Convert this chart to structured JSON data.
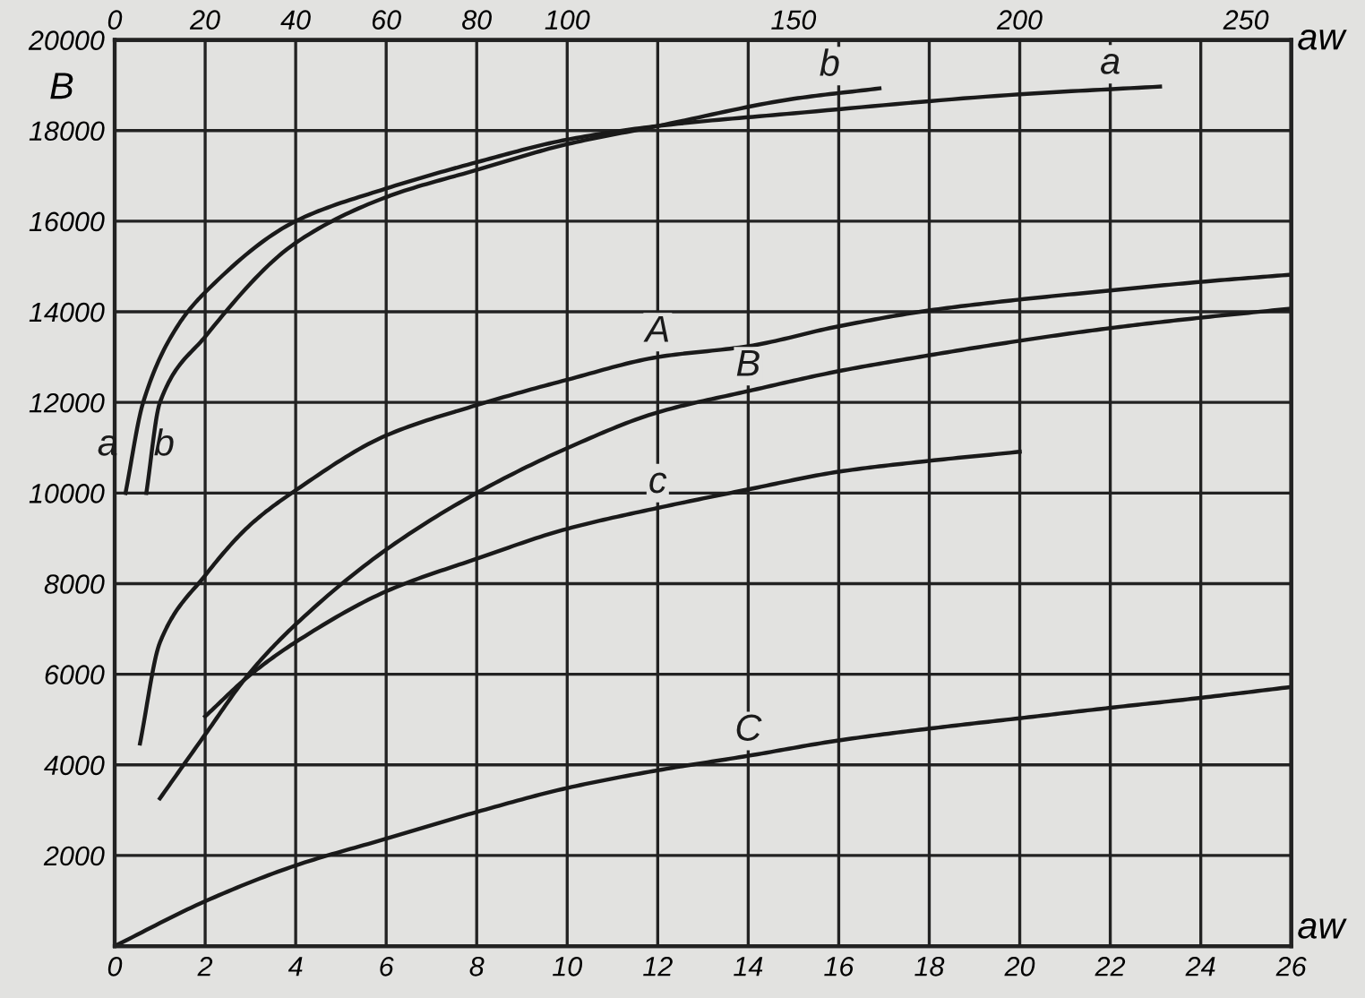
{
  "chart_data": {
    "type": "line",
    "xlabel": "aw",
    "x2label": "aw",
    "ylabel": "B",
    "xlim": [
      0,
      26
    ],
    "xticks": [
      0,
      2,
      4,
      6,
      8,
      10,
      12,
      14,
      16,
      18,
      20,
      22,
      24,
      26
    ],
    "x2lim": [
      0,
      260
    ],
    "x2ticks": [
      0,
      20,
      40,
      60,
      80,
      100,
      150,
      200,
      250
    ],
    "ylim": [
      0,
      20000
    ],
    "yticks": [
      {
        "value": 0,
        "label": null
      },
      2000,
      4000,
      6000,
      8000,
      10000,
      12000,
      14000,
      16000,
      18000,
      20000
    ],
    "grid": true,
    "legend": false,
    "marker": "none",
    "line_style": "solid",
    "series": [
      {
        "name": "a",
        "color": "#1a1a1a",
        "axis": "x2",
        "x": [
          2.4,
          6.3,
          14,
          20,
          40,
          60,
          80,
          100,
          120,
          150,
          200,
          231
        ],
        "values": [
          10000,
          12000,
          13700,
          14430,
          16000,
          16720,
          17300,
          17800,
          18100,
          18380,
          18800,
          18970
        ]
      },
      {
        "name": "b",
        "color": "#1a1a1a",
        "axis": "x2",
        "x": [
          7,
          10,
          20,
          40,
          60,
          80,
          100,
          120,
          150,
          169
        ],
        "values": [
          10000,
          12000,
          13450,
          15520,
          16530,
          17130,
          17700,
          18100,
          18700,
          18930
        ]
      },
      {
        "name": "A",
        "color": "#1a1a1a",
        "x": [
          0.56,
          1,
          2,
          3,
          4,
          6,
          8,
          10,
          12,
          14,
          16,
          18,
          20,
          22,
          24,
          26
        ],
        "values": [
          4470,
          6700,
          8180,
          9300,
          10060,
          11270,
          11940,
          12500,
          13000,
          13240,
          13680,
          14030,
          14270,
          14470,
          14660,
          14820
        ]
      },
      {
        "name": "B",
        "color": "#1a1a1a",
        "x": [
          1,
          2,
          3,
          4,
          6,
          8,
          10,
          12,
          14,
          16,
          18,
          20,
          22,
          24,
          26
        ],
        "values": [
          3260,
          4670,
          6050,
          7100,
          8750,
          10000,
          10990,
          11780,
          12250,
          12690,
          13040,
          13360,
          13640,
          13870,
          14070
        ]
      },
      {
        "name": "c",
        "color": "#1a1a1a",
        "x": [
          2,
          3,
          4,
          6,
          8,
          10,
          12,
          14,
          16,
          18,
          20
        ],
        "values": [
          5070,
          5990,
          6710,
          7830,
          8550,
          9210,
          9670,
          10080,
          10470,
          10710,
          10910
        ]
      },
      {
        "name": "C",
        "color": "#1a1a1a",
        "x": [
          0,
          2,
          4,
          6,
          8,
          10,
          12,
          14,
          16,
          18,
          20,
          22,
          24,
          26
        ],
        "values": [
          0,
          990,
          1780,
          2370,
          2960,
          3490,
          3880,
          4200,
          4540,
          4800,
          5030,
          5260,
          5480,
          5720
        ]
      }
    ]
  }
}
